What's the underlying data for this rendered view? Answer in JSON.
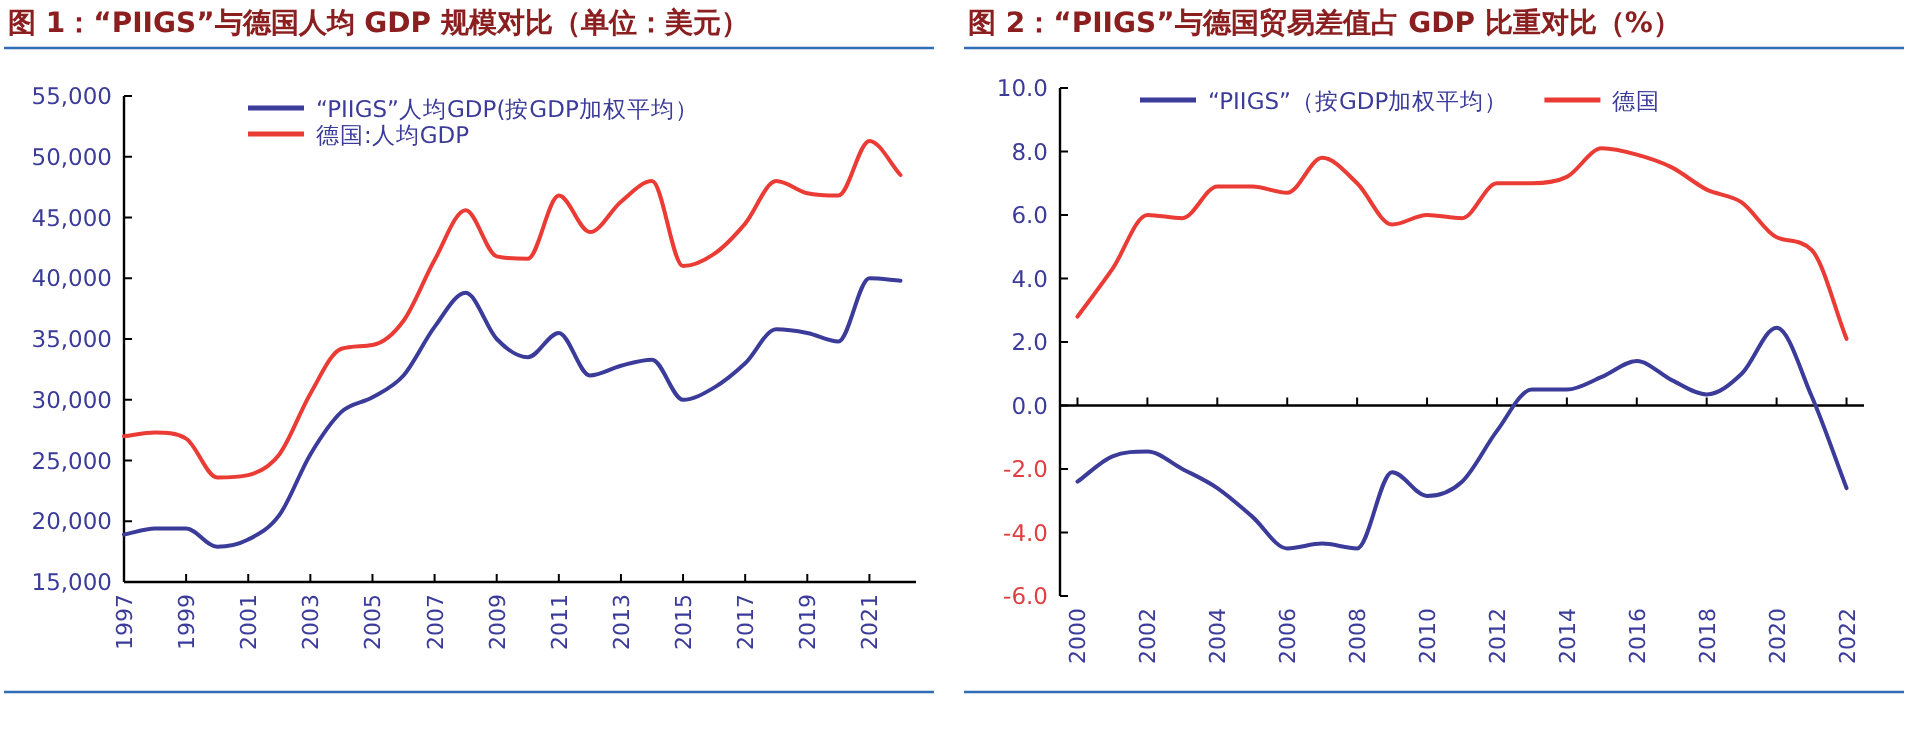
{
  "chart_data": [
    {
      "type": "line",
      "title": "图 1：“PIIGS”与德国人均 GDP 规模对比（单位：美元）",
      "x": [
        1997,
        1998,
        1999,
        2000,
        2001,
        2002,
        2003,
        2004,
        2005,
        2006,
        2007,
        2008,
        2009,
        2010,
        2011,
        2012,
        2013,
        2014,
        2015,
        2016,
        2017,
        2018,
        2019,
        2020,
        2021,
        2022
      ],
      "series": [
        {
          "name": "“PIIGS”人均GDP(按GDP加权平均）",
          "color": "#3b3b9a",
          "values": [
            18900,
            19400,
            19400,
            17900,
            18500,
            20500,
            25500,
            29000,
            30200,
            32000,
            36000,
            38800,
            35000,
            33500,
            35500,
            32000,
            32800,
            33300,
            30000,
            31000,
            33000,
            35800,
            35500,
            34800,
            40000,
            39800
          ]
        },
        {
          "name": "德国:人均GDP",
          "color": "#ea3b35",
          "values": [
            27000,
            27300,
            26800,
            23600,
            23800,
            25500,
            30500,
            34200,
            34500,
            36500,
            41500,
            45600,
            41800,
            41600,
            46800,
            43800,
            46300,
            48000,
            41000,
            42000,
            44500,
            48000,
            47000,
            46800,
            51300,
            48500
          ]
        }
      ],
      "xlim": [
        1997,
        2022.5
      ],
      "xticks": [
        1997,
        1999,
        2001,
        2003,
        2005,
        2007,
        2009,
        2011,
        2013,
        2015,
        2017,
        2019,
        2021
      ],
      "ylim": [
        15000,
        55000
      ],
      "yticks": [
        {
          "value": 15000,
          "label": "15,000"
        },
        {
          "value": 20000,
          "label": "20,000"
        },
        {
          "value": 25000,
          "label": "25,000"
        },
        {
          "value": 30000,
          "label": "30,000"
        },
        {
          "value": 35000,
          "label": "35,000"
        },
        {
          "value": 40000,
          "label": "40,000"
        },
        {
          "value": 45000,
          "label": "45,000"
        },
        {
          "value": 50000,
          "label": "50,000"
        },
        {
          "value": 55000,
          "label": "55,000"
        }
      ],
      "grid": false,
      "legend": "top",
      "marker": "none",
      "line_style": "solid"
    },
    {
      "type": "line",
      "title": "图 2：“PIIGS”与德国贸易差值占 GDP 比重对比（%）",
      "x": [
        2000,
        2001,
        2002,
        2003,
        2004,
        2005,
        2006,
        2007,
        2008,
        2009,
        2010,
        2011,
        2012,
        2013,
        2014,
        2015,
        2016,
        2017,
        2018,
        2019,
        2020,
        2021,
        2022
      ],
      "series": [
        {
          "name": "“PIIGS”（按GDP加权平均）",
          "color": "#3b3b9a",
          "values": [
            -2.4,
            -1.6,
            -1.45,
            -2.0,
            -2.6,
            -3.5,
            -4.5,
            -4.35,
            -4.5,
            -2.1,
            -2.85,
            -2.4,
            -0.8,
            0.5,
            0.5,
            0.9,
            1.4,
            0.8,
            0.35,
            1.0,
            2.45,
            0.3,
            -2.6
          ]
        },
        {
          "name": "德国",
          "color": "#ea3b35",
          "values": [
            2.8,
            4.3,
            6.0,
            5.9,
            6.9,
            6.9,
            6.7,
            7.8,
            7.0,
            5.7,
            6.0,
            5.9,
            7.0,
            7.0,
            7.2,
            8.1,
            7.9,
            7.5,
            6.8,
            6.4,
            5.3,
            4.9,
            2.1
          ]
        }
      ],
      "xlim": [
        1999.5,
        2022.5
      ],
      "xticks": [
        2000,
        2002,
        2004,
        2006,
        2008,
        2010,
        2012,
        2014,
        2016,
        2018,
        2020,
        2022
      ],
      "ylim": [
        -6,
        10
      ],
      "yticks": [
        {
          "value": -6,
          "label": "-6.0"
        },
        {
          "value": -4,
          "label": "-4.0"
        },
        {
          "value": -2,
          "label": "-2.0"
        },
        {
          "value": 0,
          "label": "0.0"
        },
        {
          "value": 2,
          "label": "2.0"
        },
        {
          "value": 4,
          "label": "4.0"
        },
        {
          "value": 6,
          "label": "6.0"
        },
        {
          "value": 8,
          "label": "8.0"
        },
        {
          "value": 10,
          "label": "10.0"
        }
      ],
      "ref_lines": [
        {
          "axis": "y",
          "value": 0,
          "color": "#000000"
        }
      ],
      "grid": false,
      "legend": "top",
      "marker": "none",
      "line_style": "solid"
    }
  ]
}
